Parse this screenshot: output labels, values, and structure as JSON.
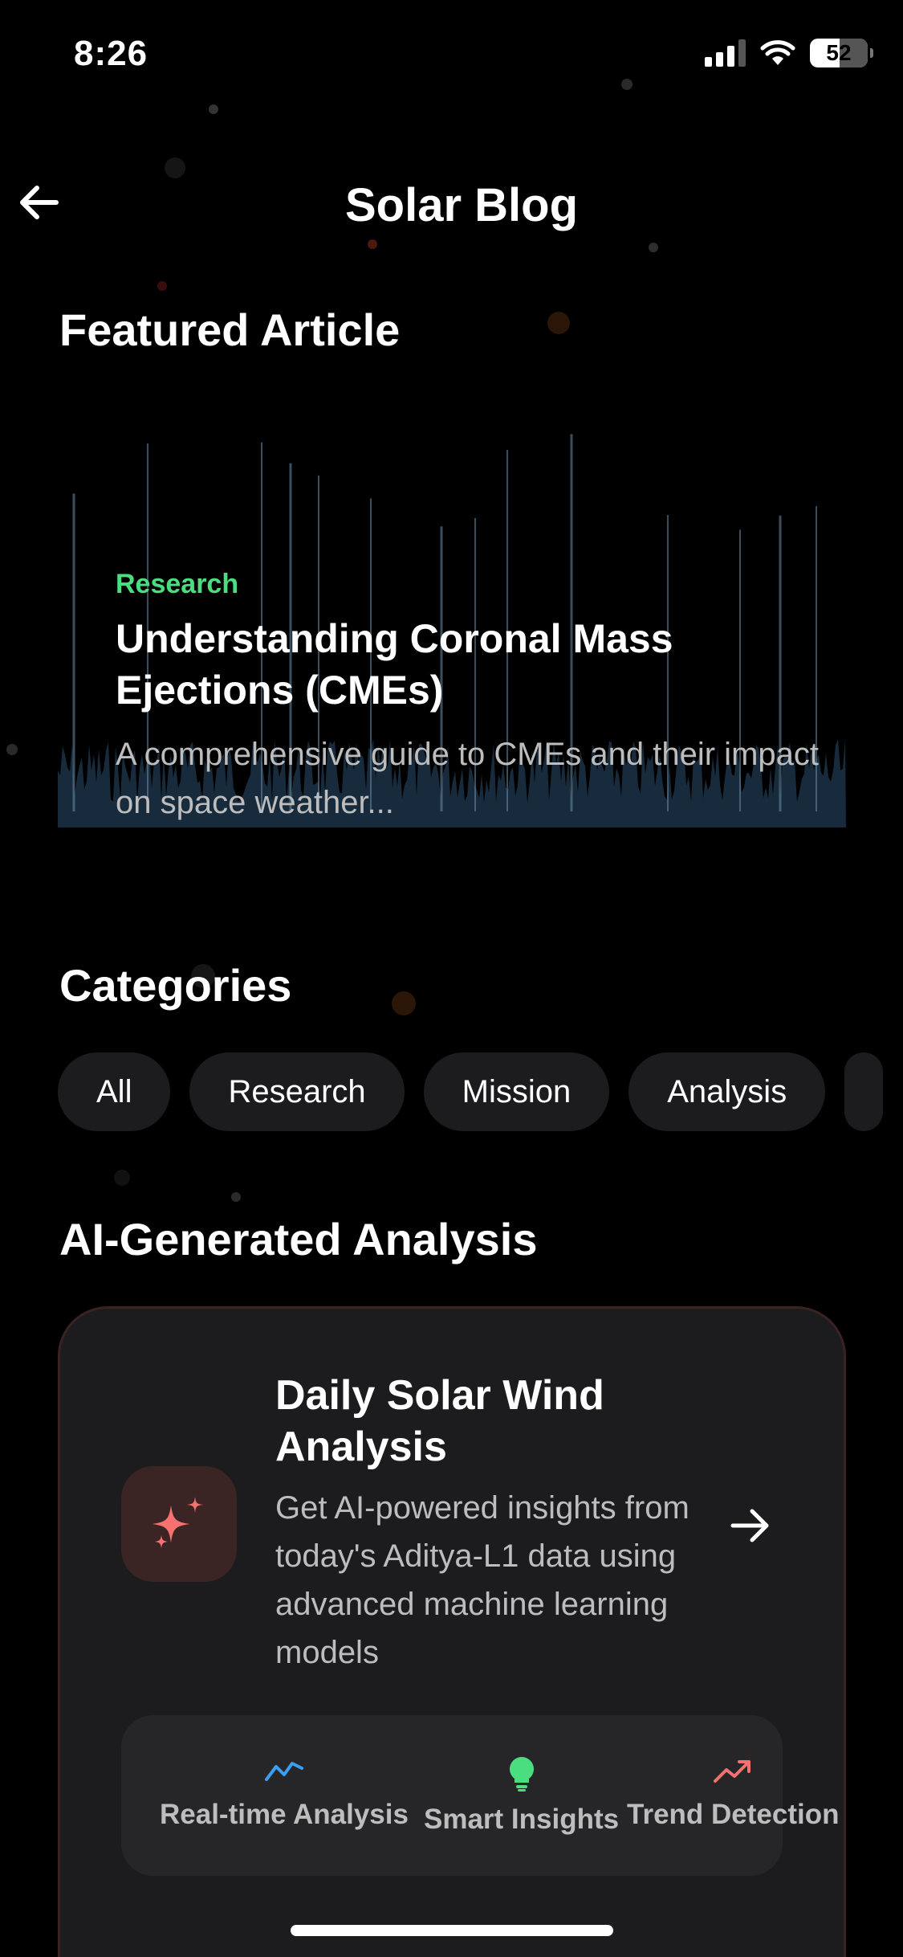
{
  "status_bar": {
    "time": "8:26",
    "battery": "52"
  },
  "header": {
    "title": "Solar Blog",
    "back_icon": "arrow-left-icon"
  },
  "featured": {
    "section_title": "Featured Article",
    "category": "Research",
    "title": "Understanding Coronal Mass Ejections (CMEs)",
    "description": "A comprehensive guide to CMEs and their impact on space weather..."
  },
  "categories": {
    "section_title": "Categories",
    "items": [
      "All",
      "Research",
      "Mission",
      "Analysis"
    ]
  },
  "ai_analysis": {
    "section_title": "AI-Generated Analysis",
    "card_title": "Daily Solar Wind Analysis",
    "card_description": "Get AI-powered insights from today's Aditya-L1 data using advanced machine learning models",
    "icon": "sparkles-icon",
    "features": [
      {
        "label": "Real-time Analysis",
        "icon": "line-chart-icon",
        "color": "#3b9ef5"
      },
      {
        "label": "Smart Insights",
        "icon": "lightbulb-icon",
        "color": "#4ade80"
      },
      {
        "label": "Trend Detection",
        "icon": "trending-up-icon",
        "color": "#f87171"
      }
    ]
  },
  "colors": {
    "accent_green": "#4ade80",
    "accent_red": "#f87171",
    "card_bg": "#1c1c1e"
  }
}
